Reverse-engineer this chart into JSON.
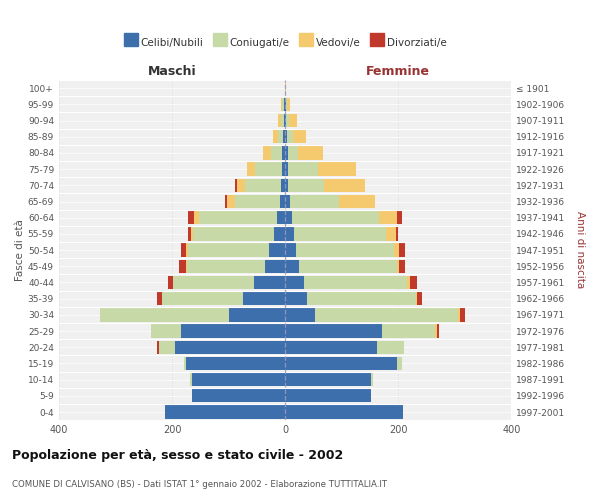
{
  "age_groups": [
    "0-4",
    "5-9",
    "10-14",
    "15-19",
    "20-24",
    "25-29",
    "30-34",
    "35-39",
    "40-44",
    "45-49",
    "50-54",
    "55-59",
    "60-64",
    "65-69",
    "70-74",
    "75-79",
    "80-84",
    "85-89",
    "90-94",
    "95-99",
    "100+"
  ],
  "birth_years": [
    "1997-2001",
    "1992-1996",
    "1987-1991",
    "1982-1986",
    "1977-1981",
    "1972-1976",
    "1967-1971",
    "1962-1966",
    "1957-1961",
    "1952-1956",
    "1947-1951",
    "1942-1946",
    "1937-1941",
    "1932-1936",
    "1927-1931",
    "1922-1926",
    "1917-1921",
    "1912-1916",
    "1907-1911",
    "1902-1906",
    "≤ 1901"
  ],
  "males": {
    "celibi": [
      213,
      165,
      165,
      175,
      195,
      185,
      100,
      75,
      55,
      35,
      28,
      20,
      15,
      10,
      8,
      5,
      5,
      3,
      2,
      2,
      0
    ],
    "coniugati": [
      0,
      0,
      4,
      4,
      28,
      52,
      228,
      143,
      143,
      138,
      143,
      143,
      138,
      78,
      63,
      48,
      20,
      10,
      5,
      3,
      0
    ],
    "vedovi": [
      0,
      0,
      0,
      0,
      0,
      0,
      0,
      0,
      1,
      2,
      4,
      4,
      9,
      14,
      14,
      14,
      14,
      8,
      5,
      2,
      0
    ],
    "divorziati": [
      0,
      0,
      0,
      0,
      4,
      0,
      0,
      9,
      9,
      13,
      9,
      4,
      9,
      4,
      4,
      0,
      0,
      0,
      0,
      0,
      0
    ]
  },
  "females": {
    "nubili": [
      208,
      152,
      152,
      198,
      162,
      172,
      52,
      38,
      33,
      25,
      20,
      15,
      12,
      8,
      5,
      5,
      5,
      3,
      2,
      2,
      0
    ],
    "coniugate": [
      0,
      0,
      4,
      8,
      48,
      92,
      253,
      193,
      183,
      173,
      173,
      163,
      153,
      88,
      63,
      53,
      18,
      10,
      5,
      2,
      0
    ],
    "vedove": [
      0,
      0,
      0,
      0,
      0,
      4,
      4,
      2,
      4,
      4,
      9,
      18,
      33,
      63,
      73,
      68,
      43,
      24,
      14,
      5,
      2
    ],
    "divorziate": [
      0,
      0,
      0,
      0,
      0,
      4,
      9,
      9,
      13,
      9,
      9,
      4,
      9,
      0,
      0,
      0,
      0,
      0,
      0,
      0,
      0
    ]
  },
  "colors": {
    "celibi_nubili": "#3d6fad",
    "coniugati": "#c8d9a8",
    "vedovi": "#f5c96e",
    "divorziati": "#c0392b"
  },
  "xlim": 400,
  "title": "Popolazione per età, sesso e stato civile - 2002",
  "subtitle": "COMUNE DI CALVISANO (BS) - Dati ISTAT 1° gennaio 2002 - Elaborazione TUTTITALIA.IT",
  "xlabel_left": "Maschi",
  "xlabel_right": "Femmine",
  "ylabel_left": "Fasce di età",
  "ylabel_right": "Anni di nascita",
  "legend_labels": [
    "Celibi/Nubili",
    "Coniugati/e",
    "Vedovi/e",
    "Divorziati/e"
  ],
  "background_color": "#ffffff",
  "plot_bg_color": "#f0f0f0",
  "grid_color": "#dddddd"
}
